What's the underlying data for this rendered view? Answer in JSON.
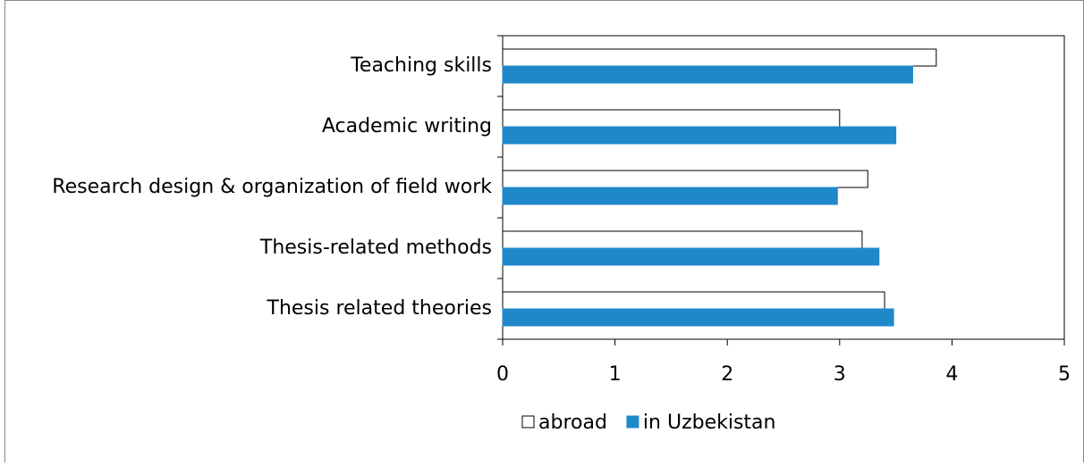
{
  "chart_data": {
    "type": "hbar",
    "categories": [
      "Teaching skills",
      "Academic writing",
      "Research design & organization of field work",
      "Thesis-related methods",
      "Thesis related theories"
    ],
    "series": [
      {
        "name": "abroad",
        "color": "#ffffff",
        "values": [
          3.86,
          3.0,
          3.25,
          3.2,
          3.4
        ]
      },
      {
        "name": "in Uzbekistan",
        "color": "#1f88c9",
        "values": [
          3.65,
          3.5,
          2.98,
          3.35,
          3.48
        ]
      }
    ],
    "xlim": [
      0,
      5
    ],
    "xticks": [
      0,
      1,
      2,
      3,
      4,
      5
    ],
    "legend": "bottom"
  }
}
